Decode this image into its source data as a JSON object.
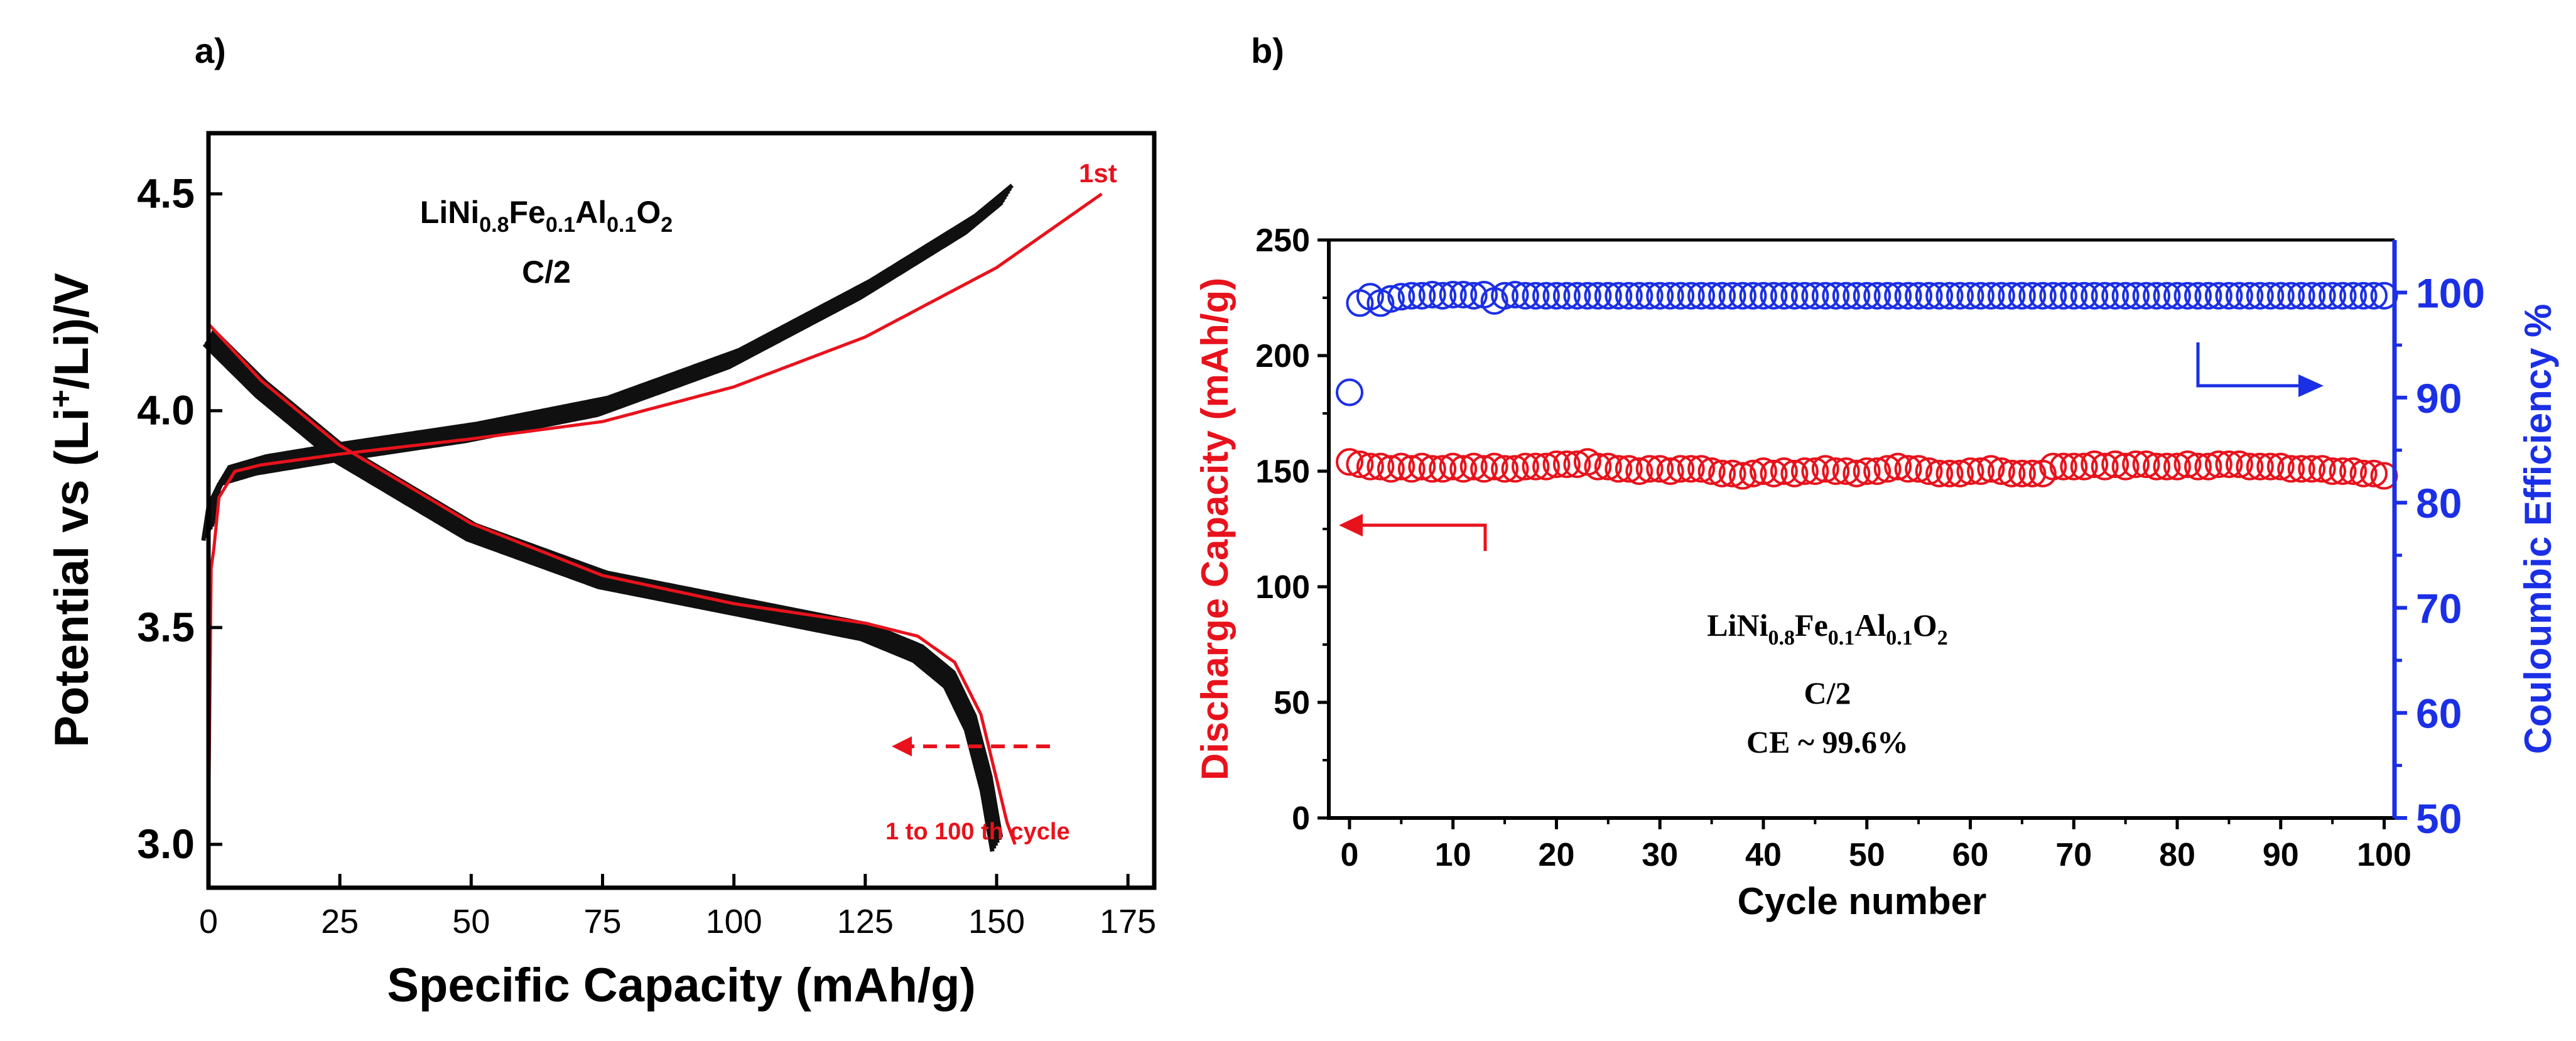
{
  "chart_data": [
    {
      "panel_label": "a)",
      "type": "line",
      "xlabel": "Specific Capacity (mAh/g)",
      "ylabel_parts": {
        "prefix": "Potential vs (Li",
        "sup": "+",
        "suffix": "/Li)/V"
      },
      "xlim": [
        0,
        180
      ],
      "ylim": [
        2.9,
        4.64
      ],
      "xticks": [
        0,
        25,
        50,
        75,
        100,
        125,
        150,
        175
      ],
      "xtick_labels": [
        "0",
        "25",
        "50",
        "75",
        "100",
        "125",
        "150",
        "175"
      ],
      "yticks": [
        3.0,
        3.5,
        4.0,
        4.5
      ],
      "ytick_labels": [
        "3.0",
        "3.5",
        "4.0",
        "4.5"
      ],
      "material": {
        "base": [
          "LiNi",
          "Fe",
          "Al",
          "O"
        ],
        "subs": [
          "0.8",
          "0.1",
          "0.1",
          "2"
        ]
      },
      "rate": "C/2",
      "annotation_first": "1st",
      "annotation_cycles": "1 to 100 th cycle",
      "colors": {
        "first_cycle": "#e8121c",
        "later_cycles": "#101010",
        "axis": "#000000"
      },
      "series": [
        {
          "name": "1st charge",
          "color": "#e8121c",
          "points": [
            [
              0,
              3.0
            ],
            [
              0.3,
              3.62
            ],
            [
              1,
              3.68
            ],
            [
              2,
              3.8
            ],
            [
              5,
              3.86
            ],
            [
              10,
              3.875
            ],
            [
              25,
              3.9
            ],
            [
              50,
              3.935
            ],
            [
              75,
              3.975
            ],
            [
              100,
              4.055
            ],
            [
              125,
              4.17
            ],
            [
              150,
              4.33
            ],
            [
              170,
              4.5
            ]
          ]
        },
        {
          "name": "1st discharge",
          "color": "#e8121c",
          "points": [
            [
              0,
              4.2
            ],
            [
              10,
              4.07
            ],
            [
              25,
              3.92
            ],
            [
              50,
              3.74
            ],
            [
              75,
              3.62
            ],
            [
              100,
              3.555
            ],
            [
              125,
              3.51
            ],
            [
              135,
              3.48
            ],
            [
              142,
              3.42
            ],
            [
              147,
              3.3
            ],
            [
              150,
              3.15
            ],
            [
              152,
              3.05
            ],
            [
              153.5,
              3.0
            ]
          ]
        },
        {
          "name": "cycles 2-100 charge",
          "color": "#101010",
          "band": 7,
          "points": [
            [
              0,
              3.72
            ],
            [
              1,
              3.8
            ],
            [
              3,
              3.85
            ],
            [
              10,
              3.875
            ],
            [
              25,
              3.905
            ],
            [
              50,
              3.95
            ],
            [
              75,
              4.01
            ],
            [
              100,
              4.12
            ],
            [
              125,
              4.28
            ],
            [
              145,
              4.43
            ],
            [
              152,
              4.5
            ]
          ]
        },
        {
          "name": "cycles 2-100 discharge",
          "color": "#101010",
          "band": 6,
          "points": [
            [
              0,
              4.17
            ],
            [
              10,
              4.05
            ],
            [
              25,
              3.9
            ],
            [
              50,
              3.72
            ],
            [
              75,
              3.61
            ],
            [
              100,
              3.55
            ],
            [
              125,
              3.49
            ],
            [
              135,
              3.44
            ],
            [
              141,
              3.38
            ],
            [
              145,
              3.28
            ],
            [
              148,
              3.14
            ],
            [
              150,
              3.0
            ]
          ]
        }
      ]
    },
    {
      "panel_label": "b)",
      "type": "scatter",
      "xlabel": "Cycle number",
      "ylabel_left": "Discharge Capacity (mAh/g)",
      "ylabel_right": "Couloumbic Efficiency %",
      "xlim": [
        -2,
        101
      ],
      "ylim_left": [
        0,
        250
      ],
      "ylim_right": [
        50,
        105
      ],
      "xticks": [
        0,
        10,
        20,
        30,
        40,
        50,
        60,
        70,
        80,
        90,
        100
      ],
      "xtick_labels": [
        "0",
        "10",
        "20",
        "30",
        "40",
        "50",
        "60",
        "70",
        "80",
        "90",
        "100"
      ],
      "yticks_left": [
        0,
        50,
        100,
        150,
        200,
        250
      ],
      "ytick_labels_left": [
        "0",
        "50",
        "100",
        "150",
        "200",
        "250"
      ],
      "yticks_right": [
        50,
        60,
        70,
        80,
        90,
        100
      ],
      "ytick_labels_right": [
        "50",
        "60",
        "70",
        "80",
        "90",
        "100"
      ],
      "material": {
        "base": [
          "LiNi",
          "Fe",
          "Al",
          "O"
        ],
        "subs": [
          "0.8",
          "0.1",
          "0.1",
          "2"
        ]
      },
      "rate": "C/2",
      "ce_note": "CE ~ 99.6%",
      "colors": {
        "capacity": "#e8121c",
        "efficiency": "#1b2fe6",
        "axis": "#000000"
      },
      "series": [
        {
          "name": "Discharge Capacity",
          "axis": "left",
          "color": "#e8121c",
          "x": [
            0,
            1,
            2,
            3,
            4,
            5,
            6,
            7,
            8,
            9,
            10,
            11,
            12,
            13,
            14,
            15,
            16,
            17,
            18,
            19,
            20,
            21,
            22,
            23,
            24,
            25,
            26,
            27,
            28,
            29,
            30,
            31,
            32,
            33,
            34,
            35,
            36,
            37,
            38,
            39,
            40,
            41,
            42,
            43,
            44,
            45,
            46,
            47,
            48,
            49,
            50,
            51,
            52,
            53,
            54,
            55,
            56,
            57,
            58,
            59,
            60,
            61,
            62,
            63,
            64,
            65,
            66,
            67,
            68,
            69,
            70,
            71,
            72,
            73,
            74,
            75,
            76,
            77,
            78,
            79,
            80,
            81,
            82,
            83,
            84,
            85,
            86,
            87,
            88,
            89,
            90,
            91,
            92,
            93,
            94,
            95,
            96,
            97,
            98,
            99,
            100
          ],
          "values": [
            154,
            153,
            152,
            152,
            151,
            152,
            151,
            152,
            151,
            151,
            152,
            151,
            152,
            151,
            152,
            151,
            151,
            152,
            152,
            152,
            153,
            153,
            153,
            154,
            152,
            152,
            151,
            151,
            150,
            151,
            151,
            150,
            151,
            151,
            151,
            150,
            149,
            149,
            148,
            149,
            150,
            149,
            150,
            149,
            150,
            150,
            151,
            150,
            150,
            149,
            150,
            150,
            151,
            152,
            151,
            151,
            150,
            149,
            149,
            149,
            150,
            150,
            151,
            150,
            149,
            149,
            149,
            149,
            152,
            152,
            152,
            152,
            153,
            152,
            153,
            152,
            153,
            153,
            152,
            152,
            152,
            153,
            152,
            152,
            153,
            153,
            153,
            152,
            152,
            152,
            152,
            151,
            151,
            151,
            151,
            150,
            150,
            150,
            149,
            149,
            148
          ]
        },
        {
          "name": "Couloumbic Efficiency",
          "axis": "right",
          "color": "#1b2fe6",
          "x": [
            0,
            1,
            2,
            3,
            4,
            5,
            6,
            7,
            8,
            9,
            10,
            11,
            12,
            13,
            14,
            15,
            16,
            17,
            18,
            19,
            20,
            21,
            22,
            23,
            24,
            25,
            26,
            27,
            28,
            29,
            30,
            31,
            32,
            33,
            34,
            35,
            36,
            37,
            38,
            39,
            40,
            41,
            42,
            43,
            44,
            45,
            46,
            47,
            48,
            49,
            50,
            51,
            52,
            53,
            54,
            55,
            56,
            57,
            58,
            59,
            60,
            61,
            62,
            63,
            64,
            65,
            66,
            67,
            68,
            69,
            70,
            71,
            72,
            73,
            74,
            75,
            76,
            77,
            78,
            79,
            80,
            81,
            82,
            83,
            84,
            85,
            86,
            87,
            88,
            89,
            90,
            91,
            92,
            93,
            94,
            95,
            96,
            97,
            98,
            99,
            100
          ],
          "values": [
            90.5,
            99.0,
            99.6,
            99.0,
            99.4,
            99.6,
            99.7,
            99.7,
            99.8,
            99.7,
            99.8,
            99.8,
            99.7,
            99.8,
            99.2,
            99.7,
            99.8,
            99.7,
            99.7,
            99.7,
            99.7,
            99.7,
            99.7,
            99.7,
            99.7,
            99.7,
            99.7,
            99.7,
            99.7,
            99.7,
            99.7,
            99.7,
            99.7,
            99.7,
            99.7,
            99.7,
            99.7,
            99.7,
            99.7,
            99.7,
            99.7,
            99.7,
            99.7,
            99.7,
            99.7,
            99.7,
            99.7,
            99.7,
            99.7,
            99.7,
            99.7,
            99.7,
            99.7,
            99.7,
            99.7,
            99.7,
            99.7,
            99.7,
            99.7,
            99.7,
            99.7,
            99.7,
            99.7,
            99.7,
            99.7,
            99.7,
            99.7,
            99.7,
            99.7,
            99.7,
            99.7,
            99.7,
            99.7,
            99.7,
            99.7,
            99.7,
            99.7,
            99.7,
            99.7,
            99.7,
            99.7,
            99.7,
            99.7,
            99.7,
            99.7,
            99.7,
            99.7,
            99.7,
            99.7,
            99.7,
            99.7,
            99.7,
            99.7,
            99.7,
            99.7,
            99.7,
            99.7,
            99.7,
            99.7,
            99.7,
            99.7
          ]
        }
      ]
    }
  ]
}
